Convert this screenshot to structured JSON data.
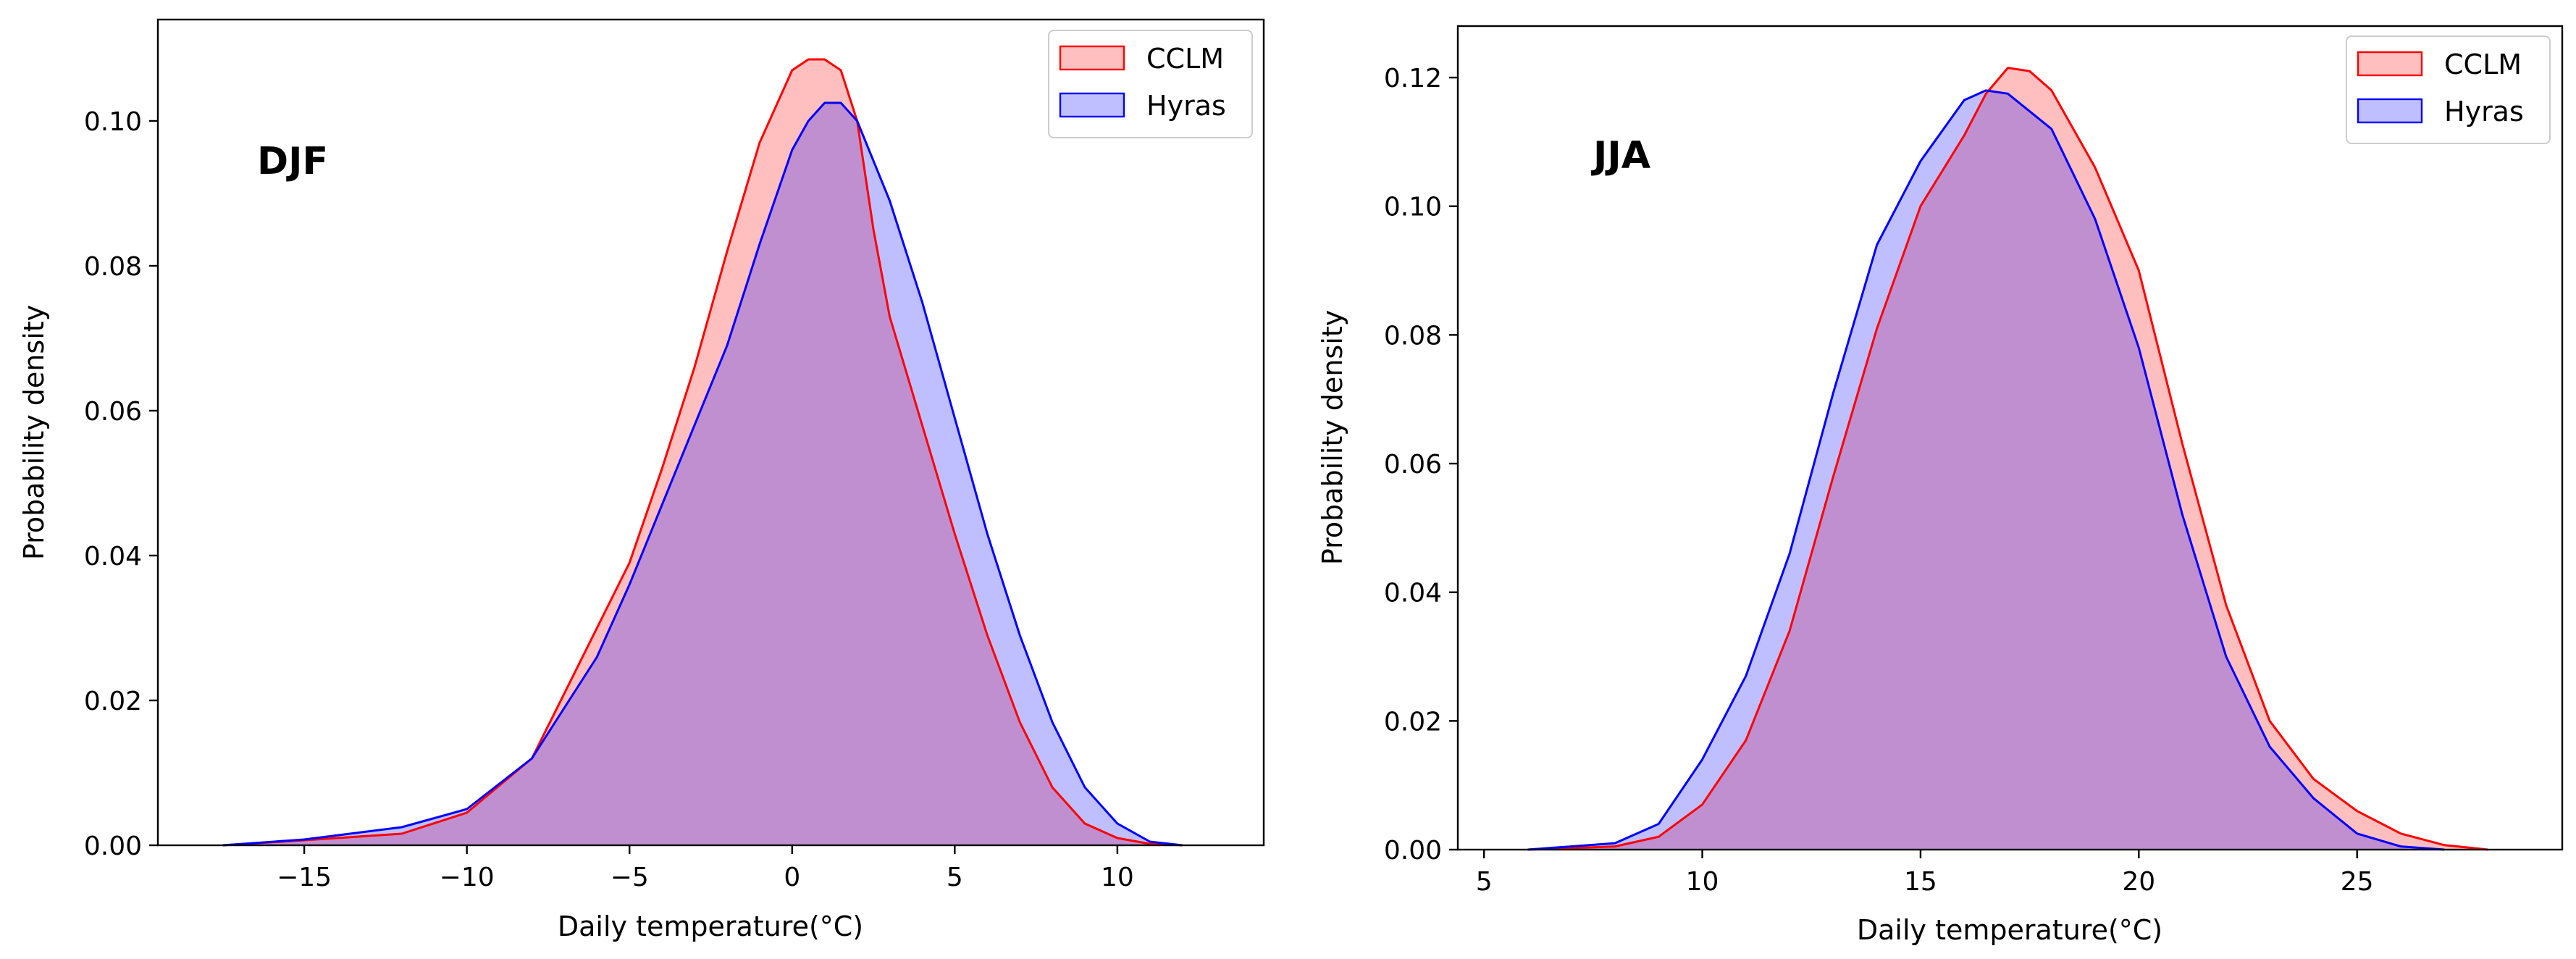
{
  "chart_data": [
    {
      "type": "area",
      "title": "DJF",
      "xlabel": "Daily temperature(°C)",
      "ylabel": "Probability density",
      "xlim": [
        -19.5,
        14.5
      ],
      "ylim": [
        0.0,
        0.114
      ],
      "xticks": [
        -15,
        -10,
        -5,
        0,
        5,
        10
      ],
      "xtick_labels": [
        "−15",
        "−10",
        "−5",
        "0",
        "5",
        "10"
      ],
      "yticks": [
        0.0,
        0.02,
        0.04,
        0.06,
        0.08,
        0.1
      ],
      "ytick_labels": [
        "0.00",
        "0.02",
        "0.04",
        "0.06",
        "0.08",
        "0.10"
      ],
      "legend": {
        "location": "top-right",
        "entries": [
          "CCLM",
          "Hyras"
        ]
      },
      "series": [
        {
          "name": "CCLM",
          "color": "#ff0000",
          "fill": "#ff0000",
          "x": [
            -17.5,
            -15,
            -12,
            -10,
            -8,
            -7,
            -5,
            -4,
            -3,
            -2,
            -1,
            0,
            0.5,
            1,
            1.5,
            2,
            2.5,
            3,
            4,
            5,
            6,
            7,
            8,
            9,
            10,
            11,
            12
          ],
          "y": [
            0.0,
            0.0007,
            0.0016,
            0.0045,
            0.012,
            0.021,
            0.039,
            0.052,
            0.066,
            0.082,
            0.097,
            0.107,
            0.1085,
            0.1085,
            0.107,
            0.1,
            0.085,
            0.073,
            0.058,
            0.043,
            0.029,
            0.017,
            0.008,
            0.003,
            0.001,
            0.0002,
            0.0
          ]
        },
        {
          "name": "Hyras",
          "color": "#0000ff",
          "fill": "#0000ff",
          "x": [
            -17.5,
            -15,
            -12,
            -10,
            -8,
            -6,
            -5,
            -4,
            -3,
            -2,
            -1,
            0,
            0.5,
            1,
            1.5,
            2,
            3,
            4,
            5,
            6,
            7,
            8,
            9,
            10,
            11,
            12
          ],
          "y": [
            0.0,
            0.0008,
            0.0025,
            0.005,
            0.012,
            0.026,
            0.036,
            0.047,
            0.058,
            0.069,
            0.083,
            0.096,
            0.1,
            0.1025,
            0.1025,
            0.1,
            0.089,
            0.075,
            0.059,
            0.043,
            0.029,
            0.017,
            0.008,
            0.003,
            0.0005,
            0.0
          ]
        }
      ]
    },
    {
      "type": "area",
      "title": "JJA",
      "xlabel": "Daily temperature(°C)",
      "ylabel": "Probability density",
      "xlim": [
        4.4,
        29.7
      ],
      "ylim": [
        0.0,
        0.128
      ],
      "xticks": [
        5,
        10,
        15,
        20,
        25
      ],
      "xtick_labels": [
        "5",
        "10",
        "15",
        "20",
        "25"
      ],
      "yticks": [
        0.0,
        0.02,
        0.04,
        0.06,
        0.08,
        0.1,
        0.12
      ],
      "ytick_labels": [
        "0.00",
        "0.02",
        "0.04",
        "0.06",
        "0.08",
        "0.10",
        "0.12"
      ],
      "legend": {
        "location": "top-right",
        "entries": [
          "CCLM",
          "Hyras"
        ]
      },
      "series": [
        {
          "name": "CCLM",
          "color": "#ff0000",
          "fill": "#ff0000",
          "x": [
            6,
            8,
            9,
            10,
            11,
            12,
            13,
            14,
            15,
            16,
            16.5,
            17,
            17.5,
            18,
            19,
            20,
            21,
            22,
            23,
            24,
            25,
            26,
            27,
            28
          ],
          "y": [
            0.0,
            0.0005,
            0.002,
            0.007,
            0.017,
            0.034,
            0.058,
            0.081,
            0.1,
            0.111,
            0.1175,
            0.1215,
            0.121,
            0.118,
            0.106,
            0.09,
            0.063,
            0.038,
            0.02,
            0.011,
            0.006,
            0.0025,
            0.0007,
            0.0
          ]
        },
        {
          "name": "Hyras",
          "color": "#0000ff",
          "fill": "#0000ff",
          "x": [
            6,
            8,
            9,
            10,
            11,
            12,
            13,
            14,
            15,
            16,
            16.5,
            17,
            18,
            19,
            20,
            21,
            22,
            23,
            24,
            25,
            26,
            27
          ],
          "y": [
            0.0,
            0.001,
            0.004,
            0.014,
            0.027,
            0.046,
            0.071,
            0.094,
            0.107,
            0.1165,
            0.118,
            0.1175,
            0.112,
            0.098,
            0.078,
            0.052,
            0.03,
            0.016,
            0.008,
            0.0025,
            0.0005,
            0.0
          ]
        }
      ]
    }
  ]
}
